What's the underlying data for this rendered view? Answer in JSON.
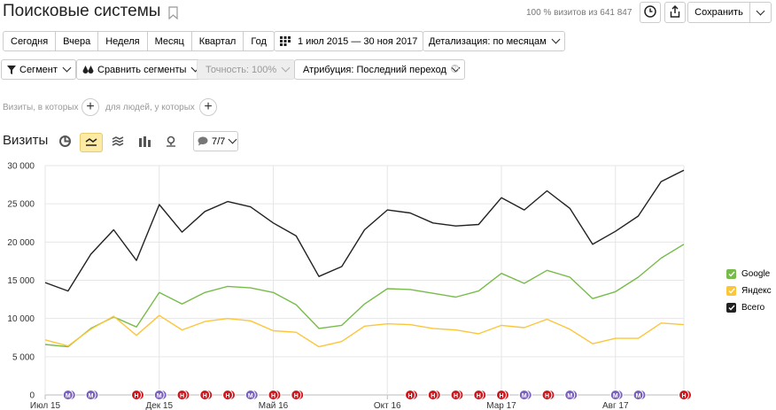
{
  "header": {
    "title": "Поисковые системы",
    "visits_info": "100 % визитов из 641 847",
    "save_label": "Сохранить"
  },
  "periods": [
    "Сегодня",
    "Вчера",
    "Неделя",
    "Месяц",
    "Квартал",
    "Год"
  ],
  "date_range": "1 июл 2015 — 30 ноя 2017",
  "detail": "Детализация: по месяцам",
  "toolbar": {
    "segment": "Сегмент",
    "compare": "Сравнить сегменты",
    "accuracy": "Точность: 100%",
    "attribution": "Атрибуция: Последний переход"
  },
  "filter": {
    "visits_label": "Визиты, в которых",
    "people_label": "для людей, у которых"
  },
  "chart_header": {
    "title": "Визиты",
    "comments_count": "7/7"
  },
  "colors": {
    "google": "#77bc4a",
    "yandex": "#fcc63b",
    "total": "#222222",
    "accent": "#fdeaa5"
  },
  "chart_data": {
    "type": "line",
    "yticks": [
      "30 000",
      "25 000",
      "20 000",
      "15 000",
      "10 000",
      "5 000",
      "0"
    ],
    "ylim": [
      0,
      30000
    ],
    "xtick_labels": [
      {
        "label": "Июл 15",
        "index": 0
      },
      {
        "label": "Дек 15",
        "index": 5
      },
      {
        "label": "Май 16",
        "index": 10
      },
      {
        "label": "Окт 16",
        "index": 15
      },
      {
        "label": "Мар 17",
        "index": 20
      },
      {
        "label": "Авг 17",
        "index": 25
      }
    ],
    "series": [
      {
        "name": "Google",
        "color": "#77bc4a",
        "values": [
          6600,
          6300,
          8700,
          10200,
          8900,
          13400,
          11900,
          13400,
          14200,
          14000,
          13400,
          11800,
          8700,
          9100,
          11900,
          13900,
          13800,
          13300,
          12800,
          13600,
          15900,
          14600,
          16300,
          15400,
          12600,
          13500,
          15400,
          17900,
          19700
        ]
      },
      {
        "name": "Яндекс",
        "color": "#fcc63b",
        "values": [
          7200,
          6400,
          8600,
          10300,
          7800,
          10400,
          8500,
          9600,
          10000,
          9700,
          8400,
          8200,
          6300,
          7000,
          9000,
          9300,
          9200,
          8700,
          8500,
          8000,
          9100,
          8800,
          9900,
          8600,
          6700,
          7400,
          7400,
          9400,
          9200
        ]
      },
      {
        "name": "Всего",
        "color": "#222222",
        "values": [
          14700,
          13600,
          18400,
          21600,
          17600,
          24900,
          21300,
          24000,
          25300,
          24600,
          22500,
          20800,
          15500,
          16800,
          21600,
          24200,
          23800,
          22500,
          22100,
          22300,
          25800,
          24200,
          26700,
          24400,
          19700,
          21400,
          23400,
          27900,
          29400
        ]
      }
    ],
    "annotations": [
      {
        "index": 1,
        "text": "M",
        "kind": "m"
      },
      {
        "index": 2,
        "text": "M",
        "kind": "m"
      },
      {
        "index": 4,
        "text": "H",
        "kind": "h"
      },
      {
        "index": 5,
        "text": "M",
        "kind": "m"
      },
      {
        "index": 6,
        "text": "H",
        "kind": "h"
      },
      {
        "index": 7,
        "text": "H",
        "kind": "h"
      },
      {
        "index": 8,
        "text": "H",
        "kind": "h"
      },
      {
        "index": 9,
        "text": "M",
        "kind": "m"
      },
      {
        "index": 10,
        "text": "H",
        "kind": "h"
      },
      {
        "index": 11,
        "text": "H",
        "kind": "h"
      },
      {
        "index": 16,
        "text": "H",
        "kind": "h"
      },
      {
        "index": 17,
        "text": "H",
        "kind": "h"
      },
      {
        "index": 18,
        "text": "H",
        "kind": "h"
      },
      {
        "index": 19,
        "text": "H",
        "kind": "h"
      },
      {
        "index": 20,
        "text": "H",
        "kind": "h"
      },
      {
        "index": 21,
        "text": "M",
        "kind": "m"
      },
      {
        "index": 22,
        "text": "H",
        "kind": "h"
      },
      {
        "index": 23,
        "text": "M",
        "kind": "m"
      },
      {
        "index": 25,
        "text": "M",
        "kind": "m"
      },
      {
        "index": 26,
        "text": "M",
        "kind": "m"
      },
      {
        "index": 28,
        "text": "H",
        "kind": "h"
      }
    ],
    "legend": "right"
  }
}
